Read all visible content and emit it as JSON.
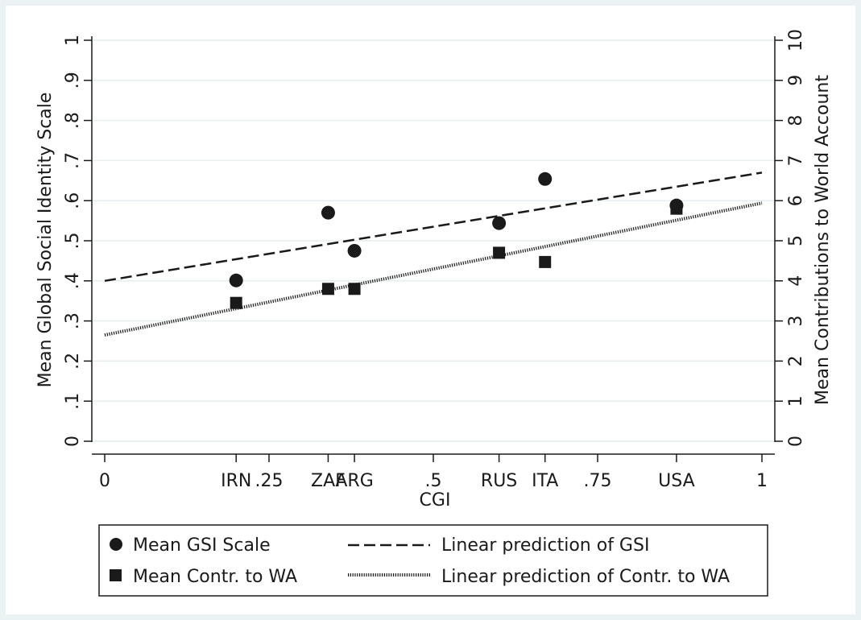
{
  "chart_data": {
    "type": "scatter",
    "title": "",
    "xlabel": "CGI",
    "ylabel_left": "Mean Global Social Identity Scale",
    "ylabel_right": "Mean Contributions to World Account",
    "xlim": [
      0,
      1
    ],
    "ylim_left": [
      0,
      1
    ],
    "ylim_right": [
      0,
      10
    ],
    "x_ticks": [
      {
        "value": 0,
        "label": "0"
      },
      {
        "value": 0.25,
        "label": ".25"
      },
      {
        "value": 0.5,
        "label": ".5"
      },
      {
        "value": 0.75,
        "label": ".75"
      },
      {
        "value": 1,
        "label": "1"
      }
    ],
    "y_left_ticks": [
      {
        "value": 0,
        "label": "0"
      },
      {
        "value": 0.1,
        "label": ".1"
      },
      {
        "value": 0.2,
        "label": ".2"
      },
      {
        "value": 0.3,
        "label": ".3"
      },
      {
        "value": 0.4,
        "label": ".4"
      },
      {
        "value": 0.5,
        "label": ".5"
      },
      {
        "value": 0.6,
        "label": ".6"
      },
      {
        "value": 0.7,
        "label": ".7"
      },
      {
        "value": 0.8,
        "label": ".8"
      },
      {
        "value": 0.9,
        "label": ".9"
      },
      {
        "value": 1,
        "label": "1"
      }
    ],
    "y_right_ticks": [
      {
        "value": 0,
        "label": "0"
      },
      {
        "value": 1,
        "label": "1"
      },
      {
        "value": 2,
        "label": "2"
      },
      {
        "value": 3,
        "label": "3"
      },
      {
        "value": 4,
        "label": "4"
      },
      {
        "value": 5,
        "label": "5"
      },
      {
        "value": 6,
        "label": "6"
      },
      {
        "value": 7,
        "label": "7"
      },
      {
        "value": 8,
        "label": "8"
      },
      {
        "value": 9,
        "label": "9"
      },
      {
        "value": 10,
        "label": "10"
      }
    ],
    "countries": [
      {
        "label": "IRN",
        "x": 0.2
      },
      {
        "label": "ZAF",
        "x": 0.34
      },
      {
        "label": "ARG",
        "x": 0.38
      },
      {
        "label": "RUS",
        "x": 0.6
      },
      {
        "label": "ITA",
        "x": 0.67
      },
      {
        "label": "USA",
        "x": 0.87
      }
    ],
    "series": [
      {
        "name": "Mean GSI Scale",
        "marker": "circle",
        "axis": "left",
        "x": [
          0.2,
          0.34,
          0.38,
          0.6,
          0.67,
          0.87
        ],
        "y": [
          0.401,
          0.57,
          0.475,
          0.544,
          0.654,
          0.588
        ]
      },
      {
        "name": "Mean Contr. to WA",
        "marker": "square",
        "axis": "right",
        "x": [
          0.2,
          0.34,
          0.38,
          0.6,
          0.67,
          0.87
        ],
        "y": [
          3.45,
          3.8,
          3.8,
          4.7,
          4.47,
          5.8
        ]
      },
      {
        "name": "Linear prediction of GSI",
        "style": "dashed",
        "axis": "left",
        "x": [
          0,
          1
        ],
        "y": [
          0.4,
          0.67
        ]
      },
      {
        "name": "Linear prediction of Contr. to WA",
        "style": "dotted",
        "axis": "right",
        "x": [
          0,
          1
        ],
        "y": [
          2.65,
          5.94
        ]
      }
    ],
    "grid": true,
    "legend_position": "bottom"
  },
  "colors": {
    "background": "#eaf2f3",
    "plot_area": "#ffffff",
    "ink": "#1a1a1a",
    "grid": "#e6eef0"
  }
}
